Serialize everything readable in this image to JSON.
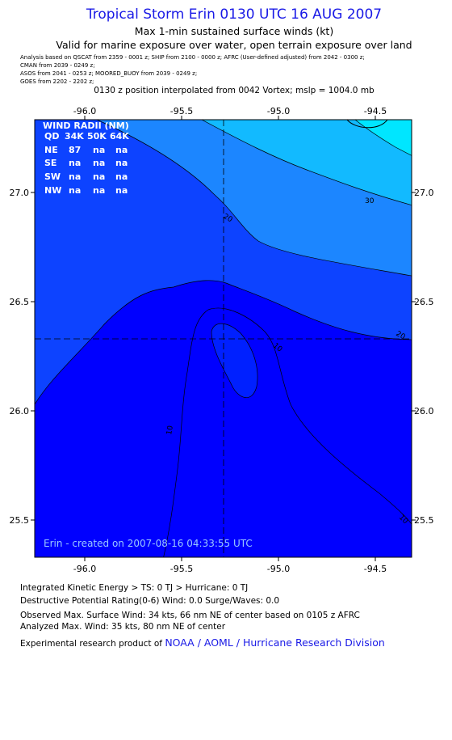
{
  "title": "Tropical Storm Erin 0130 UTC 16 AUG 2007",
  "subtitle1": "Max 1-min sustained surface winds (kt)",
  "subtitle2": "Valid for marine exposure over water, open terrain exposure over land",
  "analysis_lines": [
    "Analysis based on  QSCAT from 2359 - 0001 z;  SHIP from 2100 - 0000 z;  AFRC (User-defined adjusted) from 2042 - 0300 z;",
    "CMAN from 2039 - 0249 z;",
    "ASOS from 2041 - 0253 z;   MOORED_BUOY from 2039 - 0249 z;",
    "GOES from 2202 - 2202 z;"
  ],
  "interp_line": "0130 z position interpolated from 0042 Vortex; mslp = 1004.0 mb",
  "map": {
    "x_ticks": [
      "-96.0",
      "-95.5",
      "-95.0",
      "-94.5"
    ],
    "y_ticks": [
      "27.0",
      "26.5",
      "26.0",
      "25.5"
    ],
    "contour_labels": [
      "30",
      "20",
      "20",
      "10",
      "10",
      "10"
    ],
    "created_label": "Erin - created on 2007-08-16 04:33:55 UTC",
    "wind_radii": {
      "title": "WIND RADII (NM)",
      "header": [
        "QD",
        "34K",
        "50K",
        "64K"
      ],
      "rows": [
        [
          "NE",
          "87",
          "na",
          "na"
        ],
        [
          "SE",
          "na",
          "na",
          "na"
        ],
        [
          "SW",
          "na",
          "na",
          "na"
        ],
        [
          "NW",
          "na",
          "na",
          "na"
        ]
      ]
    },
    "colors": {
      "band_lt10": "#0000ff",
      "band_10_20": "#0d43ff",
      "band_20_30": "#1c86ff",
      "band_30_40": "#12baff",
      "band_gt40": "#00e6ff",
      "center_core": "#0020ff"
    }
  },
  "footer": {
    "ike": "Integrated Kinetic Energy > TS: 0 TJ   > Hurricane: 0 TJ",
    "dpr": "Destructive Potential Rating(0-6)   Wind: 0.0 Surge/Waves: 0.0",
    "obs": "Observed Max. Surface Wind: 34 kts, 66 nm NE of center based on 0105 z AFRC",
    "analyzed": "Analyzed Max. Wind: 35 kts, 80 nm NE of center",
    "product_prefix": "Experimental research product of ",
    "product_org": "NOAA / AOML / Hurricane Research Division"
  }
}
